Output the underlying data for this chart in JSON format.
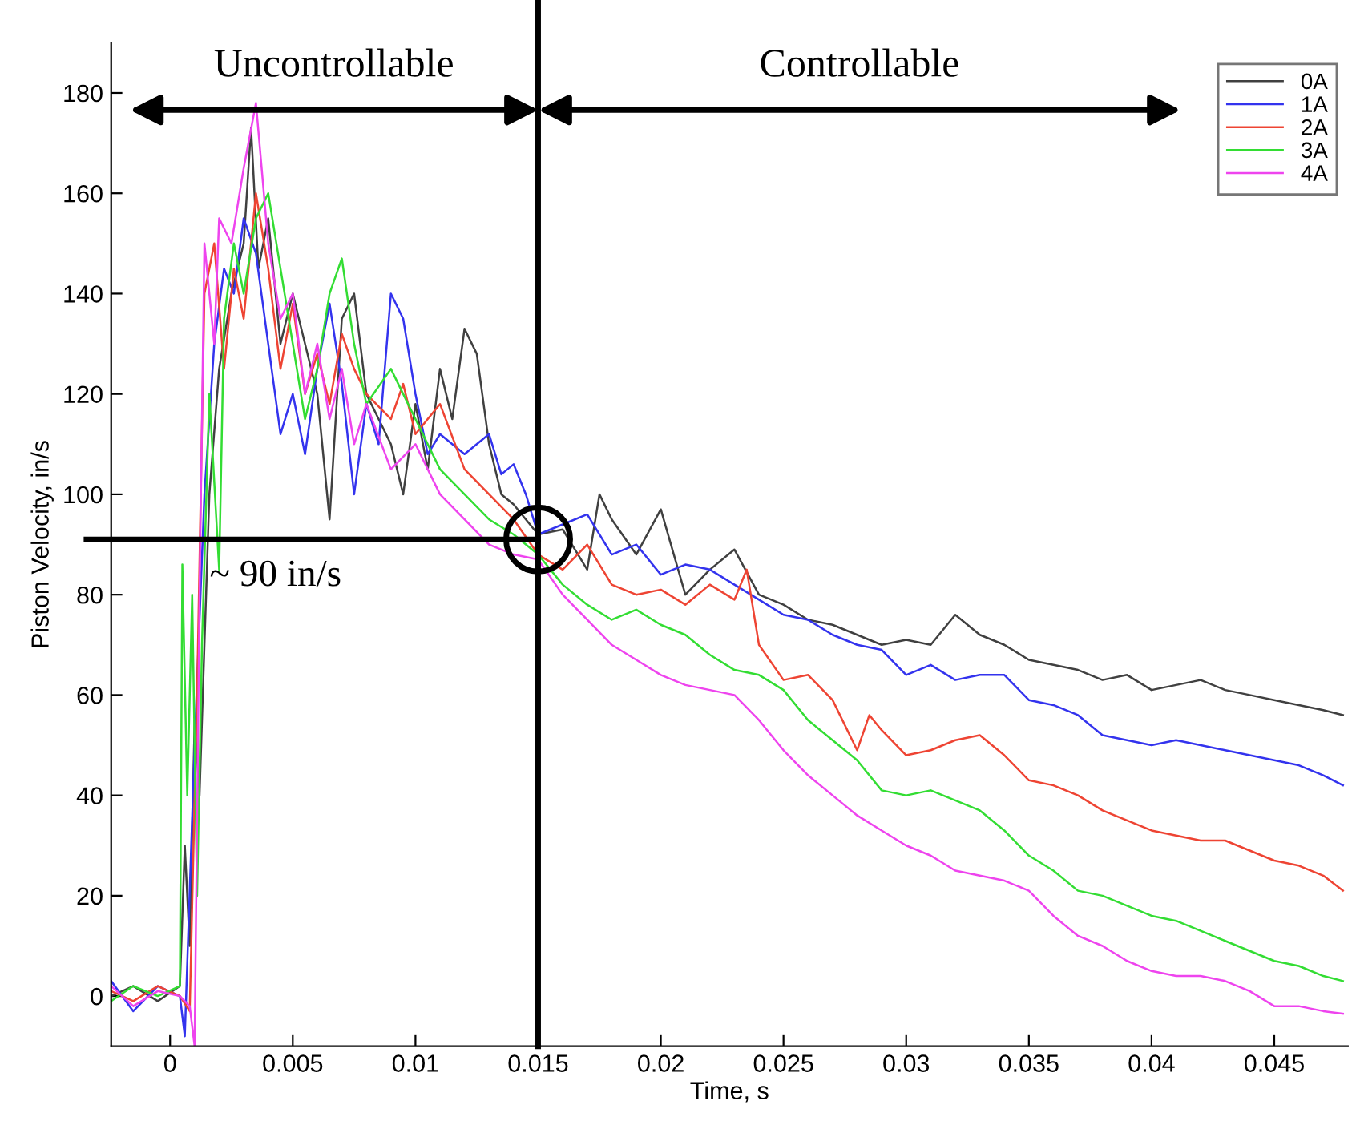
{
  "chart_data": {
    "type": "line",
    "xlabel": "Time, s",
    "ylabel": "Piston Velocity, in/s",
    "xlim": [
      -0.0024,
      0.048
    ],
    "ylim": [
      -10,
      190
    ],
    "xticks": [
      0,
      0.005,
      0.01,
      0.015,
      0.02,
      0.025,
      0.03,
      0.035,
      0.04,
      0.045
    ],
    "yticks": [
      0,
      20,
      40,
      60,
      80,
      100,
      120,
      140,
      160,
      180
    ],
    "grid": false,
    "legend": "top right",
    "line_style": "solid",
    "annotations": [
      "Uncontrollable",
      "Controllable"
    ],
    "ref_lines": [
      {
        "axis": "x",
        "value": 0.015,
        "color": "#000000"
      },
      {
        "axis": "y",
        "value": 91,
        "label": "~ 90 in/s",
        "color": "#000000"
      }
    ],
    "series": [
      {
        "name": "0A",
        "color": "#404040",
        "x": [
          -0.0024,
          -0.0015,
          -0.0005,
          0.0004,
          0.0006,
          0.0008,
          0.001,
          0.0012,
          0.0016,
          0.002,
          0.0025,
          0.003,
          0.0033,
          0.0036,
          0.004,
          0.0045,
          0.005,
          0.006,
          0.0065,
          0.007,
          0.0075,
          0.008,
          0.009,
          0.0095,
          0.01,
          0.0105,
          0.011,
          0.0115,
          0.012,
          0.0125,
          0.013,
          0.0135,
          0.014,
          0.0145,
          0.015,
          0.016,
          0.017,
          0.0175,
          0.018,
          0.019,
          0.02,
          0.021,
          0.022,
          0.023,
          0.024,
          0.025,
          0.026,
          0.027,
          0.028,
          0.029,
          0.03,
          0.031,
          0.032,
          0.033,
          0.034,
          0.035,
          0.036,
          0.037,
          0.038,
          0.039,
          0.04,
          0.041,
          0.042,
          0.043,
          0.044,
          0.045,
          0.046,
          0.047,
          0.0478
        ],
        "values": [
          0,
          2,
          -1,
          2,
          30,
          10,
          55,
          40,
          100,
          125,
          140,
          150,
          173,
          145,
          155,
          130,
          140,
          120,
          95,
          135,
          140,
          120,
          110,
          100,
          118,
          105,
          125,
          115,
          133,
          128,
          110,
          100,
          98,
          95,
          92,
          93,
          85,
          100,
          95,
          88,
          97,
          80,
          85,
          89,
          80,
          78,
          75,
          74,
          72,
          70,
          71,
          70,
          76,
          72,
          70,
          67,
          66,
          65,
          63,
          64,
          61,
          62,
          63,
          61,
          60,
          59,
          58,
          57,
          56
        ]
      },
      {
        "name": "1A",
        "color": "#3333ee",
        "x": [
          -0.0024,
          -0.0015,
          -0.0005,
          0.0004,
          0.0006,
          0.001,
          0.0014,
          0.0018,
          0.0022,
          0.0026,
          0.003,
          0.0035,
          0.004,
          0.0045,
          0.005,
          0.0055,
          0.006,
          0.0065,
          0.007,
          0.0075,
          0.008,
          0.0085,
          0.009,
          0.0095,
          0.01,
          0.0105,
          0.011,
          0.012,
          0.013,
          0.0135,
          0.014,
          0.0145,
          0.015,
          0.016,
          0.017,
          0.018,
          0.019,
          0.02,
          0.021,
          0.022,
          0.023,
          0.024,
          0.025,
          0.026,
          0.027,
          0.028,
          0.029,
          0.03,
          0.031,
          0.032,
          0.033,
          0.034,
          0.035,
          0.036,
          0.037,
          0.038,
          0.039,
          0.04,
          0.041,
          0.042,
          0.043,
          0.044,
          0.045,
          0.046,
          0.047,
          0.0478
        ],
        "values": [
          3,
          -3,
          2,
          0,
          -8,
          50,
          100,
          130,
          145,
          140,
          155,
          148,
          130,
          112,
          120,
          108,
          125,
          138,
          122,
          100,
          118,
          110,
          140,
          135,
          120,
          108,
          112,
          108,
          112,
          104,
          106,
          100,
          92,
          94,
          96,
          88,
          90,
          84,
          86,
          85,
          82,
          79,
          76,
          75,
          72,
          70,
          69,
          64,
          66,
          63,
          64,
          64,
          59,
          58,
          56,
          52,
          51,
          50,
          51,
          50,
          49,
          48,
          47,
          46,
          44,
          42
        ]
      },
      {
        "name": "2A",
        "color": "#ee4433",
        "x": [
          -0.0024,
          -0.0015,
          -0.0005,
          0.0004,
          0.0008,
          0.0011,
          0.0014,
          0.0018,
          0.0022,
          0.0026,
          0.003,
          0.0035,
          0.004,
          0.0045,
          0.005,
          0.0055,
          0.006,
          0.0065,
          0.007,
          0.0075,
          0.008,
          0.009,
          0.0095,
          0.01,
          0.011,
          0.012,
          0.013,
          0.014,
          0.015,
          0.016,
          0.017,
          0.018,
          0.019,
          0.02,
          0.021,
          0.022,
          0.023,
          0.0235,
          0.024,
          0.025,
          0.026,
          0.027,
          0.028,
          0.0285,
          0.029,
          0.03,
          0.031,
          0.032,
          0.033,
          0.034,
          0.035,
          0.036,
          0.037,
          0.038,
          0.039,
          0.04,
          0.041,
          0.042,
          0.043,
          0.044,
          0.045,
          0.046,
          0.047,
          0.0478
        ],
        "values": [
          1,
          -1,
          2,
          0,
          -3,
          60,
          140,
          150,
          125,
          145,
          135,
          160,
          145,
          125,
          138,
          120,
          128,
          118,
          132,
          125,
          120,
          115,
          122,
          112,
          118,
          105,
          100,
          95,
          88,
          85,
          90,
          82,
          80,
          81,
          78,
          82,
          79,
          85,
          70,
          63,
          64,
          59,
          49,
          56,
          53,
          48,
          49,
          51,
          52,
          48,
          43,
          42,
          40,
          37,
          35,
          33,
          32,
          31,
          31,
          29,
          27,
          26,
          24,
          21
        ]
      },
      {
        "name": "3A",
        "color": "#33dd33",
        "x": [
          -0.0024,
          -0.0015,
          -0.0005,
          0.0004,
          0.0005,
          0.0007,
          0.0009,
          0.0011,
          0.0013,
          0.0016,
          0.002,
          0.0022,
          0.0026,
          0.003,
          0.0035,
          0.004,
          0.0045,
          0.005,
          0.0055,
          0.006,
          0.0065,
          0.007,
          0.0075,
          0.008,
          0.009,
          0.01,
          0.011,
          0.012,
          0.013,
          0.014,
          0.015,
          0.016,
          0.017,
          0.018,
          0.019,
          0.02,
          0.021,
          0.022,
          0.023,
          0.024,
          0.025,
          0.026,
          0.027,
          0.028,
          0.029,
          0.03,
          0.031,
          0.032,
          0.033,
          0.034,
          0.035,
          0.036,
          0.037,
          0.038,
          0.039,
          0.04,
          0.041,
          0.042,
          0.043,
          0.044,
          0.045,
          0.046,
          0.047,
          0.0478
        ],
        "values": [
          -1,
          2,
          0,
          2,
          86,
          40,
          80,
          20,
          70,
          120,
          85,
          135,
          150,
          140,
          155,
          160,
          145,
          130,
          115,
          125,
          140,
          147,
          130,
          118,
          125,
          115,
          105,
          100,
          95,
          92,
          88,
          82,
          78,
          75,
          77,
          74,
          72,
          68,
          65,
          64,
          61,
          55,
          51,
          47,
          41,
          40,
          41,
          39,
          37,
          33,
          28,
          25,
          21,
          20,
          18,
          16,
          15,
          13,
          11,
          9,
          7,
          6,
          4,
          3
        ]
      },
      {
        "name": "4A",
        "color": "#ee44ee",
        "x": [
          -0.0024,
          -0.0015,
          -0.0005,
          0.0004,
          0.0008,
          0.001,
          0.0012,
          0.0014,
          0.0018,
          0.002,
          0.0025,
          0.003,
          0.0035,
          0.004,
          0.0045,
          0.005,
          0.0055,
          0.006,
          0.0065,
          0.007,
          0.0075,
          0.008,
          0.009,
          0.01,
          0.011,
          0.012,
          0.013,
          0.014,
          0.015,
          0.016,
          0.017,
          0.018,
          0.019,
          0.02,
          0.021,
          0.022,
          0.023,
          0.024,
          0.025,
          0.026,
          0.027,
          0.028,
          0.029,
          0.03,
          0.031,
          0.032,
          0.033,
          0.034,
          0.035,
          0.036,
          0.037,
          0.038,
          0.039,
          0.04,
          0.041,
          0.042,
          0.043,
          0.044,
          0.045,
          0.046,
          0.047,
          0.0478
        ],
        "values": [
          2,
          -2,
          1,
          0,
          -2,
          -10,
          80,
          150,
          130,
          155,
          150,
          165,
          178,
          150,
          135,
          140,
          120,
          130,
          115,
          125,
          110,
          118,
          105,
          110,
          100,
          95,
          90,
          88,
          87,
          80,
          75,
          70,
          67,
          64,
          62,
          61,
          60,
          55,
          49,
          44,
          40,
          36,
          33,
          30,
          28,
          25,
          24,
          23,
          21,
          16,
          12,
          10,
          7,
          5,
          4,
          4,
          3,
          1,
          -2,
          -2,
          -3,
          -3.5
        ]
      }
    ]
  }
}
